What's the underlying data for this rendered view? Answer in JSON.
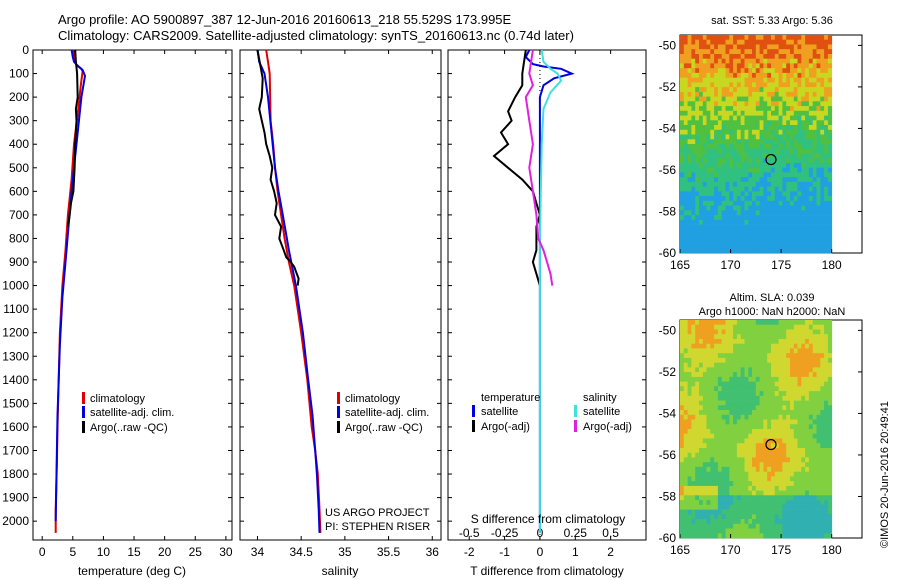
{
  "header": {
    "title_line1": "Argo profile: AO 5900897_387 12-Jun-2016 20160613_218 55.529S 173.995E",
    "title_line2": "Climatology: CARS2009. Satellite-adjusted climatology: synTS_20160613.nc (0.74d later)"
  },
  "credit": "©IMOS 20-Jun-2016 20:49:41",
  "colors": {
    "climatology": "#e00000",
    "satellite": "#0000e0",
    "argo": "#000000",
    "sat_salinity": "#40e0e0",
    "argo_salinity": "#e020e0"
  },
  "chart_data": [
    {
      "id": "temperature",
      "type": "line",
      "xlabel": "temperature (deg C)",
      "ylabel": "",
      "xlim": [
        -1.5,
        31
      ],
      "ylim": [
        2080,
        0
      ],
      "xticks": [
        0,
        5,
        10,
        15,
        20,
        25,
        30
      ],
      "yticks": [
        0,
        100,
        200,
        300,
        400,
        500,
        600,
        700,
        800,
        900,
        1000,
        1100,
        1200,
        1300,
        1400,
        1500,
        1600,
        1700,
        1800,
        1900,
        2000
      ],
      "legend": [
        "climatology",
        "satellite-adj. clim.",
        "Argo(..raw -QC)"
      ],
      "series": [
        {
          "name": "climatology",
          "color": "#e00000",
          "x": [
            5.1,
            5.3,
            5.5,
            6.4,
            6.6,
            6.3,
            5.9,
            5.2,
            4.8,
            4.2,
            3.8,
            3.3,
            2.9,
            2.7,
            2.5,
            2.4,
            2.3,
            2.2,
            2.2
          ],
          "y": [
            0,
            30,
            60,
            80,
            90,
            150,
            250,
            400,
            550,
            700,
            850,
            1000,
            1200,
            1400,
            1600,
            1750,
            1850,
            1950,
            2050
          ]
        },
        {
          "name": "satellite-adj. clim.",
          "color": "#0000e0",
          "x": [
            4.8,
            5.0,
            5.2,
            5.9,
            6.6,
            7.0,
            6.4,
            5.8,
            5.2,
            4.8,
            4.3,
            3.8,
            3.3,
            2.9,
            2.7,
            2.5,
            2.4,
            2.3,
            2.2
          ],
          "y": [
            0,
            30,
            50,
            70,
            85,
            110,
            200,
            350,
            500,
            600,
            750,
            900,
            1050,
            1250,
            1400,
            1550,
            1700,
            1850,
            2000
          ]
        },
        {
          "name": "Argo(..raw -QC)",
          "color": "#000000",
          "x": [
            5.4,
            5.5,
            5.7,
            5.8,
            5.5,
            5.6,
            5.4,
            5.3,
            5.1,
            4.7,
            4.5,
            4.2
          ],
          "y": [
            0,
            50,
            100,
            200,
            250,
            300,
            400,
            500,
            600,
            650,
            700,
            750
          ]
        }
      ]
    },
    {
      "id": "salinity",
      "type": "line",
      "xlabel": "salinity",
      "ylabel": "",
      "xlim": [
        33.8,
        36.1
      ],
      "ylim": [
        2080,
        0
      ],
      "xticks": [
        34,
        34.5,
        35,
        35.5,
        36
      ],
      "legend": [
        "climatology",
        "satellite-adj. clim.",
        "Argo(..raw -QC)"
      ],
      "annotations": [
        "US ARGO PROJECT",
        "PI: STEPHEN RISER"
      ],
      "series": [
        {
          "name": "climatology",
          "color": "#e00000",
          "x": [
            34.1,
            34.12,
            34.14,
            34.15,
            34.18,
            34.2,
            34.23,
            34.27,
            34.31,
            34.36,
            34.42,
            34.5,
            34.57,
            34.62,
            34.66,
            34.69,
            34.71,
            34.72
          ],
          "y": [
            0,
            50,
            100,
            300,
            400,
            500,
            600,
            700,
            800,
            900,
            1000,
            1200,
            1400,
            1600,
            1700,
            1800,
            1950,
            2050
          ]
        },
        {
          "name": "satellite-adj. clim.",
          "color": "#0000e0",
          "x": [
            34.0,
            34.02,
            34.08,
            34.12,
            34.16,
            34.2,
            34.24,
            34.29,
            34.36,
            34.44,
            34.52,
            34.58,
            34.63,
            34.66,
            34.68,
            34.7,
            34.71
          ],
          "y": [
            0,
            50,
            100,
            200,
            350,
            500,
            600,
            700,
            850,
            1000,
            1200,
            1400,
            1550,
            1700,
            1800,
            1950,
            2050
          ]
        },
        {
          "name": "Argo(..raw -QC)",
          "color": "#000000",
          "x": [
            34.0,
            34.03,
            34.06,
            34.05,
            34.02,
            34.05,
            34.08,
            34.1,
            34.14,
            34.17,
            34.15,
            34.19,
            34.22,
            34.2,
            34.27,
            34.25,
            34.3,
            34.33,
            34.38,
            34.42,
            34.45,
            34.47,
            34.46
          ],
          "y": [
            0,
            60,
            120,
            200,
            250,
            300,
            350,
            400,
            450,
            500,
            550,
            600,
            650,
            700,
            750,
            800,
            850,
            880,
            900,
            920,
            950,
            970,
            1000
          ]
        }
      ]
    },
    {
      "id": "difference",
      "type": "line",
      "xlabel": "T difference from climatology",
      "xlabel2": "S difference from climatology",
      "xlim": [
        -2.6,
        3.0
      ],
      "ylim": [
        2080,
        0
      ],
      "xticks": [
        -2,
        -1,
        0,
        1,
        2
      ],
      "xticks2_labels": [
        "-0.5",
        "-0.25",
        "0",
        "0.25",
        "0.5"
      ],
      "legend_temperature_title": "temperature",
      "legend_salinity_title": "salinity",
      "legend": [
        "satellite",
        "Argo(-adj)",
        "satellite",
        "Argo(-adj)"
      ],
      "series": [
        {
          "name": "T satellite",
          "color": "#0000e0",
          "x": [
            -0.3,
            -0.4,
            -0.2,
            0.1,
            0.6,
            0.9,
            0.4,
            0.1,
            0.0,
            0.0,
            0.0,
            0.0,
            0.0
          ],
          "y": [
            0,
            30,
            60,
            70,
            80,
            100,
            120,
            150,
            200,
            400,
            800,
            1500,
            2050
          ]
        },
        {
          "name": "T Argo(-adj)",
          "color": "#000000",
          "x": [
            -0.4,
            -0.5,
            -0.5,
            -0.7,
            -0.9,
            -0.8,
            -1.1,
            -0.9,
            -1.3,
            -0.9,
            -0.5,
            -0.2,
            -0.1,
            0.0,
            -0.1,
            -0.1,
            -0.1,
            -0.2,
            -0.1,
            0.0
          ],
          "y": [
            0,
            100,
            150,
            200,
            260,
            300,
            350,
            400,
            450,
            500,
            550,
            600,
            650,
            700,
            750,
            800,
            850,
            900,
            950,
            1000
          ]
        },
        {
          "name": "S satellite",
          "color": "#40e0e0",
          "x": [
            0.05,
            0.1,
            0.3,
            0.5,
            0.6,
            0.3,
            0.1,
            0.05,
            0.0,
            0.0,
            0.0
          ],
          "y": [
            0,
            50,
            80,
            100,
            130,
            180,
            250,
            400,
            800,
            1500,
            2050
          ]
        },
        {
          "name": "S Argo(-adj)",
          "color": "#e020e0",
          "x": [
            -0.2,
            -0.3,
            -0.2,
            -0.4,
            -0.3,
            -0.2,
            -0.3,
            -0.2,
            -0.1,
            -0.05,
            0.1,
            0.2,
            0.3,
            0.35
          ],
          "y": [
            0,
            100,
            150,
            200,
            300,
            400,
            500,
            600,
            700,
            800,
            850,
            900,
            950,
            1000
          ]
        }
      ]
    },
    {
      "id": "sst_map",
      "type": "heatmap",
      "title": "sat. SST: 5.33  Argo: 5.36",
      "xticks": [
        165,
        170,
        175,
        180
      ],
      "yticks": [
        -50,
        -52,
        -54,
        -56,
        -58,
        -60
      ],
      "xlim": [
        165,
        183
      ],
      "ylim": [
        -60,
        -49.5
      ],
      "marker": {
        "lon": 174,
        "lat": -55.5
      }
    },
    {
      "id": "sla_map",
      "type": "heatmap",
      "title_line1": "Altim. SLA: 0.039",
      "title_line2": "Argo h1000: NaN h2000: NaN",
      "xticks": [
        165,
        170,
        175,
        180
      ],
      "yticks": [
        -50,
        -52,
        -54,
        -56,
        -58,
        -60
      ],
      "xlim": [
        165,
        183
      ],
      "ylim": [
        -60,
        -49.5
      ],
      "marker": {
        "lon": 174,
        "lat": -55.5
      }
    }
  ]
}
